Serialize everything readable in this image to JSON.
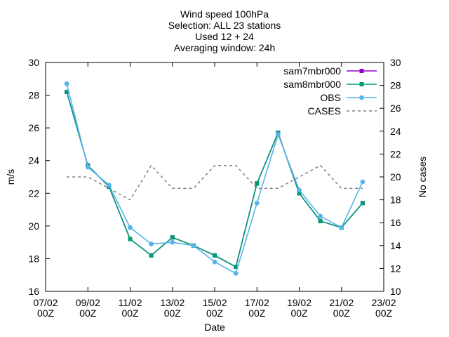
{
  "title_lines": [
    "Wind speed 100hPa",
    "Selection: ALL     23 stations",
    "Used 12 + 24",
    "Averaging window: 24h"
  ],
  "chart_data": {
    "type": "line",
    "title": "Wind speed 100hPa",
    "xlabel": "Date",
    "ylabel": "m/s",
    "y2label": "No cases",
    "xlim": [
      "07/02 00Z",
      "23/02 00Z"
    ],
    "ylim": [
      16,
      30
    ],
    "y2lim": [
      10,
      30
    ],
    "x_ticks": [
      {
        "line1": "07/02",
        "line2": "00Z"
      },
      {
        "line1": "09/02",
        "line2": "00Z"
      },
      {
        "line1": "11/02",
        "line2": "00Z"
      },
      {
        "line1": "13/02",
        "line2": "00Z"
      },
      {
        "line1": "15/02",
        "line2": "00Z"
      },
      {
        "line1": "17/02",
        "line2": "00Z"
      },
      {
        "line1": "19/02",
        "line2": "00Z"
      },
      {
        "line1": "21/02",
        "line2": "00Z"
      },
      {
        "line1": "23/02",
        "line2": "00Z"
      }
    ],
    "y_ticks": [
      "16",
      "18",
      "20",
      "22",
      "24",
      "26",
      "28",
      "30"
    ],
    "y2_ticks": [
      "10",
      "12",
      "14",
      "16",
      "18",
      "20",
      "22",
      "24",
      "26",
      "28",
      "30"
    ],
    "x": [
      "08/02 00Z",
      "09/02 00Z",
      "10/02 00Z",
      "11/02 00Z",
      "12/02 00Z",
      "13/02 00Z",
      "14/02 00Z",
      "15/02 00Z",
      "16/02 00Z",
      "17/02 00Z",
      "18/02 00Z",
      "19/02 00Z",
      "20/02 00Z",
      "21/02 00Z",
      "22/02 00Z"
    ],
    "series": [
      {
        "name": "sam7mbr000",
        "axis": "y",
        "color": "#9400d3",
        "marker": "filled-square",
        "values": [
          28.2,
          23.7,
          22.4,
          19.2,
          18.2,
          19.3,
          18.8,
          18.2,
          17.5,
          22.6,
          25.7,
          22.0,
          20.3,
          19.9,
          21.4
        ]
      },
      {
        "name": "sam8mbr000",
        "axis": "y",
        "color": "#009e73",
        "marker": "filled-square",
        "values": [
          28.2,
          23.7,
          22.4,
          19.2,
          18.2,
          19.3,
          18.8,
          18.2,
          17.5,
          22.6,
          25.7,
          22.0,
          20.3,
          19.9,
          21.4
        ]
      },
      {
        "name": "OBS",
        "axis": "y",
        "color": "#56b4e9",
        "marker": "filled-circle",
        "values": [
          28.7,
          23.6,
          22.5,
          19.9,
          18.9,
          19.0,
          18.8,
          17.8,
          17.1,
          21.4,
          25.6,
          22.2,
          20.6,
          19.9,
          22.7
        ]
      },
      {
        "name": "CASES",
        "axis": "y2",
        "color": "#808080",
        "dash": true,
        "values": [
          20,
          20,
          19,
          18,
          21,
          19,
          19,
          21,
          21,
          19,
          19,
          20,
          21,
          19,
          19
        ]
      }
    ],
    "grid": false,
    "legend_position": "top-right"
  }
}
